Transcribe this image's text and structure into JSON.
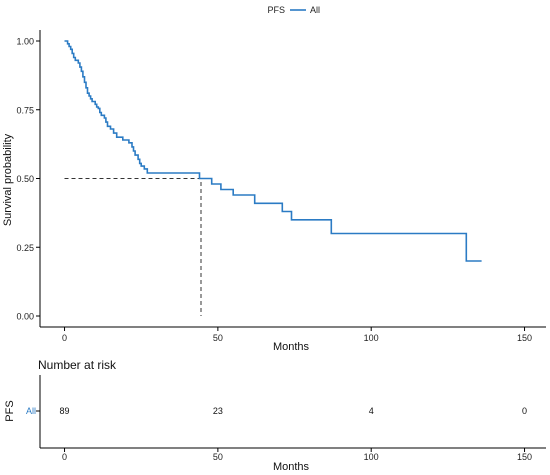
{
  "chart_data": [
    {
      "type": "line",
      "subtype": "kaplan-meier step",
      "legend": {
        "title": "PFS",
        "entries": [
          "All"
        ],
        "position": "top"
      },
      "series": [
        {
          "name": "All",
          "color": "#2b7bc4",
          "step_points": [
            [
              0,
              1.0
            ],
            [
              1,
              0.99
            ],
            [
              1.5,
              0.98
            ],
            [
              2,
              0.97
            ],
            [
              2.5,
              0.955
            ],
            [
              3,
              0.94
            ],
            [
              3.5,
              0.93
            ],
            [
              4,
              0.93
            ],
            [
              4.5,
              0.92
            ],
            [
              5,
              0.905
            ],
            [
              5.5,
              0.89
            ],
            [
              6,
              0.87
            ],
            [
              6.5,
              0.85
            ],
            [
              7,
              0.83
            ],
            [
              7.5,
              0.81
            ],
            [
              8,
              0.8
            ],
            [
              8.5,
              0.79
            ],
            [
              9,
              0.78
            ],
            [
              10,
              0.77
            ],
            [
              10.5,
              0.76
            ],
            [
              11,
              0.755
            ],
            [
              11.5,
              0.74
            ],
            [
              12,
              0.73
            ],
            [
              13,
              0.72
            ],
            [
              13.5,
              0.705
            ],
            [
              14,
              0.69
            ],
            [
              15,
              0.68
            ],
            [
              16,
              0.665
            ],
            [
              17,
              0.65
            ],
            [
              19,
              0.64
            ],
            [
              21,
              0.63
            ],
            [
              22,
              0.615
            ],
            [
              22.5,
              0.6
            ],
            [
              23,
              0.585
            ],
            [
              24,
              0.57
            ],
            [
              24.5,
              0.555
            ],
            [
              25,
              0.545
            ],
            [
              26,
              0.535
            ],
            [
              27,
              0.52
            ],
            [
              44,
              0.5
            ],
            [
              48,
              0.48
            ],
            [
              51,
              0.46
            ],
            [
              55,
              0.44
            ],
            [
              62,
              0.41
            ],
            [
              71,
              0.38
            ],
            [
              74,
              0.35
            ],
            [
              87,
              0.3
            ],
            [
              131,
              0.2
            ],
            [
              136,
              0.2
            ]
          ]
        }
      ],
      "median_guide": {
        "x": 44.5,
        "y": 0.5
      },
      "xlabel": "Months",
      "ylabel": "Survival probability",
      "xlim": [
        -8,
        157
      ],
      "ylim": [
        -0.04,
        1.04
      ],
      "x_ticks": [
        "0",
        "50",
        "100",
        "150"
      ],
      "y_ticks": [
        "0.00",
        "0.25",
        "0.50",
        "0.75",
        "1.00"
      ],
      "grid": false
    },
    {
      "type": "table",
      "title": "Number at risk",
      "row_group_label": "PFS",
      "rows": [
        {
          "label": "All",
          "times": [
            0,
            50,
            100,
            150
          ],
          "values": [
            "89",
            "23",
            "4",
            "0"
          ]
        }
      ],
      "xlabel": "Months",
      "x_ticks": [
        "0",
        "50",
        "100",
        "150"
      ]
    }
  ]
}
